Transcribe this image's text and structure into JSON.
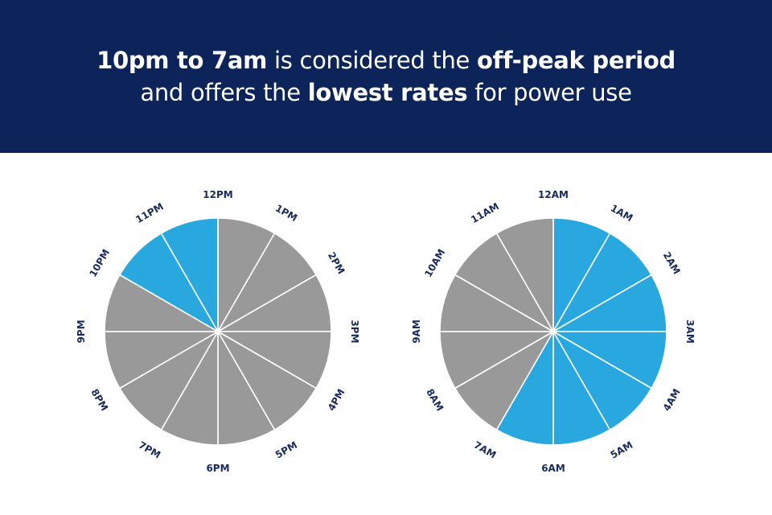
{
  "header": {
    "line1": [
      {
        "text": "10pm to 7am",
        "bold": true
      },
      {
        "text": " is considered the ",
        "bold": false
      },
      {
        "text": "off-peak period",
        "bold": true
      }
    ],
    "line2": [
      {
        "text": "and offers the ",
        "bold": false
      },
      {
        "text": "lowest rates",
        "bold": true
      },
      {
        "text": " for power use",
        "bold": false
      }
    ]
  },
  "colors": {
    "off_peak": "#29a8e0",
    "peak": "#999999",
    "label": "#1a2b5e",
    "header_bg": "#0c2459"
  },
  "chart_data": [
    {
      "type": "pie",
      "name": "pm-clock",
      "labels": [
        "12PM",
        "1PM",
        "2PM",
        "3PM",
        "4PM",
        "5PM",
        "6PM",
        "7PM",
        "8PM",
        "9PM",
        "10PM",
        "11PM"
      ],
      "segments": [
        "peak",
        "peak",
        "peak",
        "peak",
        "peak",
        "peak",
        "peak",
        "peak",
        "peak",
        "peak",
        "off_peak",
        "off_peak"
      ],
      "values": [
        1,
        1,
        1,
        1,
        1,
        1,
        1,
        1,
        1,
        1,
        1,
        1
      ]
    },
    {
      "type": "pie",
      "name": "am-clock",
      "labels": [
        "12AM",
        "1AM",
        "2AM",
        "3AM",
        "4AM",
        "5AM",
        "6AM",
        "7AM",
        "8AM",
        "9AM",
        "10AM",
        "11AM"
      ],
      "segments": [
        "off_peak",
        "off_peak",
        "off_peak",
        "off_peak",
        "off_peak",
        "off_peak",
        "off_peak",
        "peak",
        "peak",
        "peak",
        "peak",
        "peak"
      ],
      "values": [
        1,
        1,
        1,
        1,
        1,
        1,
        1,
        1,
        1,
        1,
        1,
        1
      ]
    }
  ]
}
